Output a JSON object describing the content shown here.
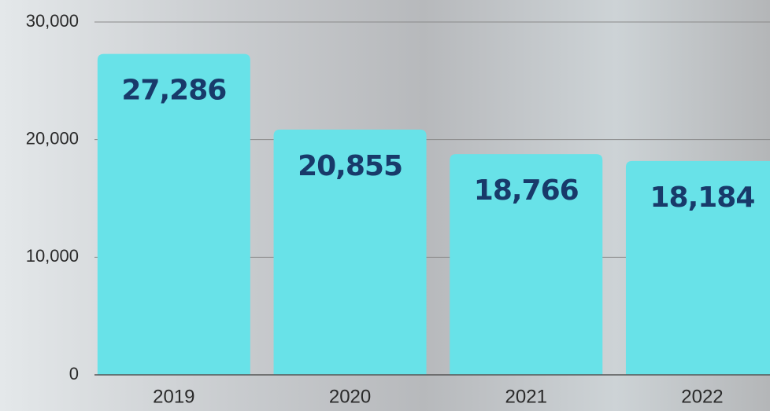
{
  "chart_data": {
    "type": "bar",
    "categories": [
      "2019",
      "2020",
      "2021",
      "2022"
    ],
    "values": [
      27286,
      20855,
      18766,
      18184
    ],
    "value_labels": [
      "27,286",
      "20,855",
      "18,766",
      "18,184"
    ],
    "color": "#68e2e8",
    "ylim": [
      0,
      30000
    ],
    "yticks": [
      0,
      {
        "value": 10000,
        "label": "10,000"
      },
      {
        "value": 20000,
        "label": "20,000"
      },
      {
        "value": 30000,
        "label": "30,000"
      }
    ],
    "grid": true
  }
}
